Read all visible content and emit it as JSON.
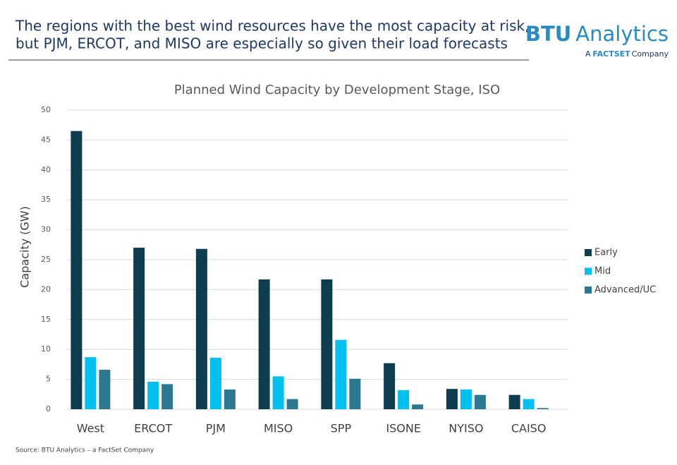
{
  "slide": {
    "headline": [
      "The regions with the best wind resources have the most capacity at risk,",
      "but PJM, ERCOT, and MISO are especially so given their load forecasts"
    ],
    "logo": {
      "brand": "BTU",
      "name": "Analytics",
      "tagline_prefix": "A",
      "tagline_mark": "FACTSET",
      "tagline_suffix": "Company"
    },
    "source": "Source: BTU Analytics – a FactSet Company"
  },
  "chart_data": {
    "type": "bar",
    "title": "Planned Wind Capacity by Development Stage, ISO",
    "y_label": "Capacity (GW)",
    "categories": [
      "West",
      "ERCOT",
      "PJM",
      "MISO",
      "SPP",
      "ISONE",
      "NYISO",
      "CAISO"
    ],
    "series": [
      {
        "name": "Early",
        "color": "#0d3d4f",
        "values": [
          46.5,
          27.0,
          26.8,
          21.7,
          21.7,
          7.7,
          3.4,
          2.4
        ]
      },
      {
        "name": "Mid",
        "color": "#00c0ef",
        "values": [
          8.7,
          4.6,
          8.6,
          5.5,
          11.6,
          3.2,
          3.3,
          1.7
        ]
      },
      {
        "name": "Advanced/UC",
        "color": "#2d7891",
        "values": [
          6.6,
          4.2,
          3.3,
          1.7,
          5.1,
          0.8,
          2.4,
          0.2
        ]
      }
    ],
    "ylim": [
      0,
      50
    ],
    "yticks": [
      0,
      5,
      10,
      15,
      20,
      25,
      30,
      35,
      40,
      45,
      50
    ],
    "grid": true,
    "legend": "right"
  }
}
